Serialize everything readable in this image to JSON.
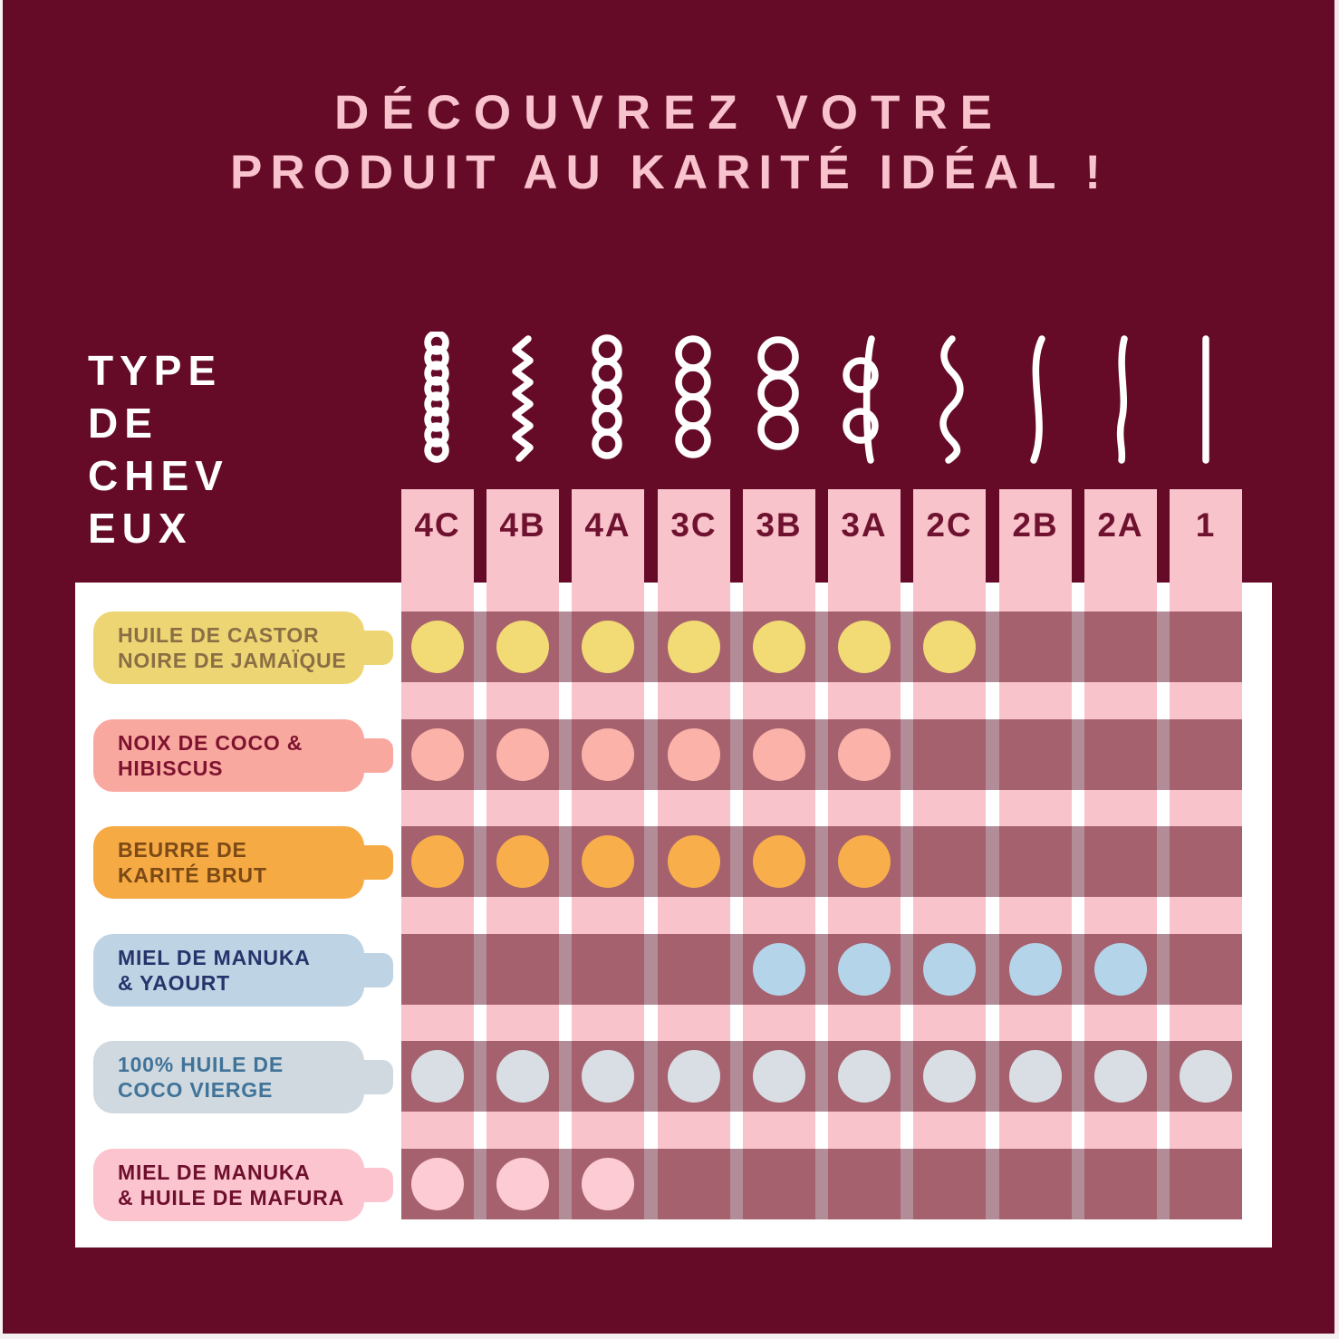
{
  "title": {
    "line1": "DÉCOUVREZ VOTRE",
    "line2": "PRODUIT AU KARITÉ IDÉAL !"
  },
  "axis_label": "TYPE\nDE\nCHEV\nEUX",
  "columns": [
    {
      "label": "4C",
      "icon": "coil-tight-icon"
    },
    {
      "label": "4B",
      "icon": "zigzag-icon"
    },
    {
      "label": "4A",
      "icon": "coil-small-icon"
    },
    {
      "label": "3C",
      "icon": "coil-medium-icon"
    },
    {
      "label": "3B",
      "icon": "coil-large-icon"
    },
    {
      "label": "3A",
      "icon": "loops-two-icon"
    },
    {
      "label": "2C",
      "icon": "wave-strong-icon"
    },
    {
      "label": "2B",
      "icon": "wave-soft-icon"
    },
    {
      "label": "2A",
      "icon": "wave-slight-icon"
    },
    {
      "label": "1",
      "icon": "straight-icon"
    }
  ],
  "rows": [
    {
      "label_line1": "HUILE DE CASTOR",
      "label_line2": "NOIRE DE JAMAÏQUE",
      "label_bg": "#EED573",
      "label_color": "#8A6F45",
      "dot_color": "#F2DA74",
      "dots": [
        1,
        1,
        1,
        1,
        1,
        1,
        1,
        0,
        0,
        0
      ]
    },
    {
      "label_line1": "NOIX DE COCO &",
      "label_line2": "HIBISCUS",
      "label_bg": "#F9A8A0",
      "label_color": "#7D132E",
      "dot_color": "#FBB2A8",
      "dots": [
        1,
        1,
        1,
        1,
        1,
        1,
        0,
        0,
        0,
        0
      ]
    },
    {
      "label_line1": "BEURRE DE",
      "label_line2": "KARITÉ BRUT",
      "label_bg": "#F6AA43",
      "label_color": "#7C4A16",
      "dot_color": "#F8AE4B",
      "dots": [
        1,
        1,
        1,
        1,
        1,
        1,
        0,
        0,
        0,
        0
      ]
    },
    {
      "label_line1": "MIEL DE MANUKA",
      "label_line2": "& YAOURT",
      "label_bg": "#BED3E4",
      "label_color": "#27346B",
      "dot_color": "#B4D4EA",
      "dots": [
        0,
        0,
        0,
        0,
        1,
        1,
        1,
        1,
        1,
        0
      ]
    },
    {
      "label_line1": "100% HUILE DE",
      "label_line2": "COCO VIERGE",
      "label_bg": "#CFD9DF",
      "label_color": "#417399",
      "dot_color": "#D8DEE3",
      "dots": [
        1,
        1,
        1,
        1,
        1,
        1,
        1,
        1,
        1,
        1
      ]
    },
    {
      "label_line1": "MIEL DE MANUKA",
      "label_line2": "& HUILE DE MAFURA",
      "label_bg": "#FBC4CE",
      "label_color": "#6E0F2D",
      "dot_color": "#FDCBD4",
      "dots": [
        1,
        1,
        1,
        0,
        0,
        0,
        0,
        0,
        0,
        0
      ]
    }
  ],
  "colors": {
    "background": "#650B28",
    "title": "#F8C3CD",
    "axis_label": "#FFFFFF",
    "panel": "#FFFFFF",
    "column": "#F9C3CB",
    "header_text": "#6E1230",
    "band": "#B28C96",
    "band_cell": "#A5616E",
    "icon": "#FFFFFF"
  },
  "chart_data": {
    "type": "heatmap",
    "title": "DÉCOUVREZ VOTRE PRODUIT AU KARITÉ IDÉAL !",
    "x_axis_label": "TYPE DE CHEVEUX",
    "x_categories": [
      "4C",
      "4B",
      "4A",
      "3C",
      "3B",
      "3A",
      "2C",
      "2B",
      "2A",
      "1"
    ],
    "y_categories": [
      "HUILE DE CASTOR NOIRE DE JAMAÏQUE",
      "NOIX DE COCO & HIBISCUS",
      "BEURRE DE KARITÉ BRUT",
      "MIEL DE MANUKA & YAOURT",
      "100% HUILE DE COCO VIERGE",
      "MIEL DE MANUKA & HUILE DE MAFURA"
    ],
    "values": [
      [
        1,
        1,
        1,
        1,
        1,
        1,
        1,
        0,
        0,
        0
      ],
      [
        1,
        1,
        1,
        1,
        1,
        1,
        0,
        0,
        0,
        0
      ],
      [
        1,
        1,
        1,
        1,
        1,
        1,
        0,
        0,
        0,
        0
      ],
      [
        0,
        0,
        0,
        0,
        1,
        1,
        1,
        1,
        1,
        0
      ],
      [
        1,
        1,
        1,
        1,
        1,
        1,
        1,
        1,
        1,
        1
      ],
      [
        1,
        1,
        1,
        0,
        0,
        0,
        0,
        0,
        0,
        0
      ]
    ]
  }
}
